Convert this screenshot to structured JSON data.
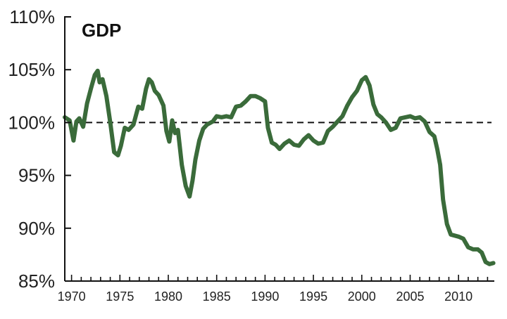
{
  "chart_data": {
    "type": "line",
    "title": "GDP",
    "xlabel": "",
    "ylabel": "",
    "xlim": [
      1969.3,
      2013.7
    ],
    "ylim": [
      85,
      110
    ],
    "y_ticks": [
      110,
      105,
      100,
      95,
      90,
      85
    ],
    "y_tick_labels": [
      "110%",
      "105%",
      "100%",
      "95%",
      "90%",
      "85%"
    ],
    "x_ticks": [
      1970,
      1975,
      1980,
      1985,
      1990,
      1995,
      2000,
      2005,
      2010
    ],
    "x_tick_labels": [
      "1970",
      "1975",
      "1980",
      "1985",
      "1990",
      "1995",
      "2000",
      "2005",
      "2010"
    ],
    "reference_line": {
      "value": 100,
      "style": "dashed"
    },
    "grid": false,
    "colors": {
      "series": "#3a6b3a",
      "axis": "#111111",
      "reference": "#111111"
    },
    "series": [
      {
        "name": "GDP",
        "x": [
          1969.3,
          1969.8,
          1970.2,
          1970.5,
          1970.8,
          1971.2,
          1971.6,
          1972.0,
          1972.4,
          1972.7,
          1972.9,
          1973.2,
          1973.6,
          1974.0,
          1974.4,
          1974.8,
          1975.1,
          1975.5,
          1975.9,
          1976.4,
          1976.9,
          1977.3,
          1977.7,
          1978.0,
          1978.3,
          1978.6,
          1979.0,
          1979.5,
          1979.8,
          1980.1,
          1980.4,
          1980.7,
          1981.0,
          1981.4,
          1981.8,
          1982.2,
          1982.5,
          1982.8,
          1983.2,
          1983.6,
          1984.0,
          1984.6,
          1985.0,
          1985.5,
          1986.0,
          1986.5,
          1987.0,
          1987.5,
          1988.0,
          1988.5,
          1989.0,
          1989.5,
          1990.0,
          1990.3,
          1990.7,
          1991.1,
          1991.5,
          1992.0,
          1992.5,
          1993.0,
          1993.5,
          1994.0,
          1994.5,
          1995.0,
          1995.5,
          1996.0,
          1996.5,
          1997.0,
          1997.5,
          1998.0,
          1998.5,
          1999.0,
          1999.5,
          2000.0,
          2000.4,
          2000.8,
          2001.2,
          2001.6,
          2002.0,
          2002.5,
          2003.0,
          2003.5,
          2004.0,
          2004.5,
          2005.0,
          2005.5,
          2006.0,
          2006.5,
          2007.0,
          2007.5,
          2007.8,
          2008.1,
          2008.4,
          2008.8,
          2009.2,
          2009.6,
          2010.0,
          2010.5,
          2011.0,
          2011.5,
          2012.0,
          2012.4,
          2012.8,
          2013.2,
          2013.6
        ],
        "values": [
          100.5,
          100.2,
          98.3,
          100.1,
          100.4,
          99.6,
          101.8,
          103.2,
          104.5,
          104.9,
          103.8,
          104.1,
          102.5,
          100.0,
          97.2,
          96.9,
          97.8,
          99.5,
          99.3,
          99.8,
          101.5,
          101.3,
          103.2,
          104.1,
          103.8,
          103.0,
          102.6,
          101.6,
          99.2,
          98.2,
          100.2,
          99.0,
          99.3,
          96.0,
          94.0,
          93.0,
          94.5,
          96.5,
          98.3,
          99.4,
          99.8,
          100.1,
          100.6,
          100.5,
          100.6,
          100.5,
          101.5,
          101.6,
          102.0,
          102.5,
          102.5,
          102.3,
          102.0,
          99.5,
          98.1,
          97.9,
          97.5,
          98.0,
          98.3,
          97.9,
          97.8,
          98.4,
          98.8,
          98.3,
          98.0,
          98.1,
          99.2,
          99.6,
          100.1,
          100.6,
          101.6,
          102.4,
          103.0,
          104.0,
          104.3,
          103.5,
          101.7,
          100.8,
          100.5,
          100.0,
          99.3,
          99.5,
          100.4,
          100.5,
          100.6,
          100.4,
          100.5,
          100.1,
          99.1,
          98.7,
          97.5,
          96.0,
          92.7,
          90.4,
          89.4,
          89.3,
          89.2,
          89.0,
          88.2,
          88.0,
          88.0,
          87.7,
          86.8,
          86.6,
          86.7
        ]
      }
    ]
  }
}
